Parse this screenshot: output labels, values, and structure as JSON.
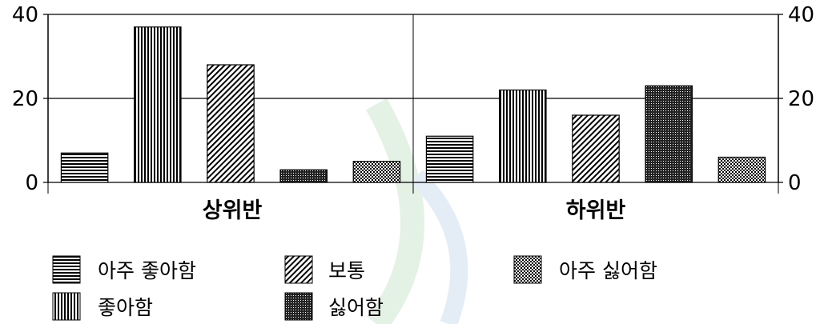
{
  "chart_data": {
    "type": "bar",
    "categories": [
      "상위반",
      "하위반"
    ],
    "series": [
      {
        "name": "아주 좋아함",
        "values": [
          7,
          11
        ],
        "pattern": "horizontal"
      },
      {
        "name": "좋아함",
        "values": [
          37,
          22
        ],
        "pattern": "vertical"
      },
      {
        "name": "보통",
        "values": [
          28,
          16
        ],
        "pattern": "diagonal"
      },
      {
        "name": "싫어함",
        "values": [
          3,
          23
        ],
        "pattern": "dense"
      },
      {
        "name": "아주 싫어함",
        "values": [
          5,
          6
        ],
        "pattern": "checker"
      }
    ],
    "y_ticks": [
      "0",
      "20",
      "40"
    ],
    "ylim": [
      0,
      40
    ],
    "grid": true,
    "legend_position": "bottom",
    "colors": {
      "bar_pattern": "#000000",
      "bar_fill": "#ffffff",
      "axis": "#000000"
    }
  }
}
